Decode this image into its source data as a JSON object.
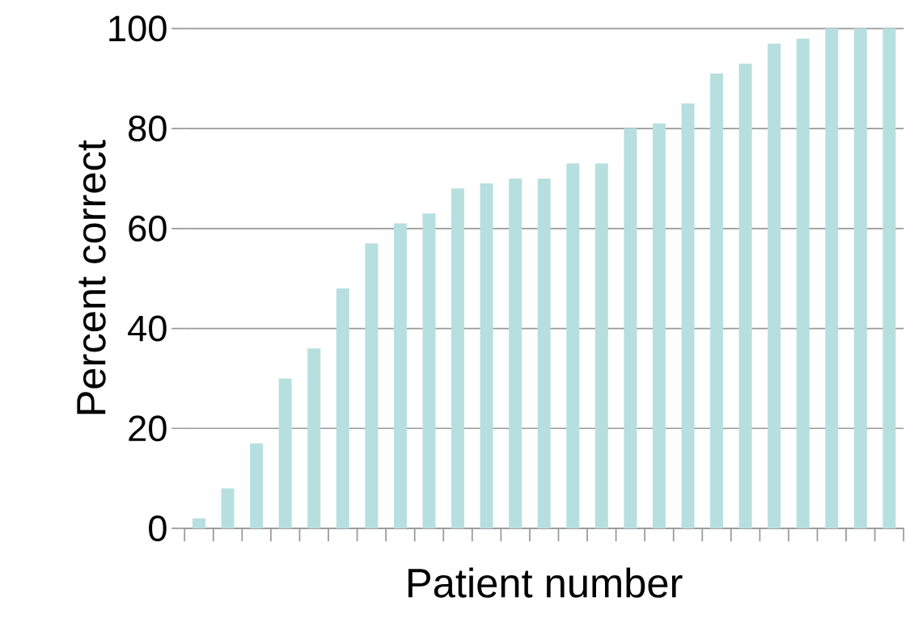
{
  "chart_data": {
    "type": "bar",
    "xlabel": "Patient number",
    "ylabel": "Percent correct",
    "categories": [
      null,
      null,
      null,
      null,
      null,
      null,
      null,
      null,
      null,
      null,
      null,
      null,
      null,
      null,
      null,
      null,
      null,
      null,
      null,
      null,
      null,
      null,
      null,
      null,
      null
    ],
    "values": [
      2,
      8,
      17,
      30,
      36,
      48,
      57,
      61,
      63,
      68,
      69,
      70,
      70,
      73,
      73,
      80,
      81,
      85,
      91,
      93,
      97,
      98,
      100,
      100,
      100
    ],
    "color": "#b7dfe0",
    "ylim": [
      0,
      100
    ],
    "yticks": [
      0,
      20,
      40,
      60,
      80,
      100
    ],
    "grid": "y"
  }
}
